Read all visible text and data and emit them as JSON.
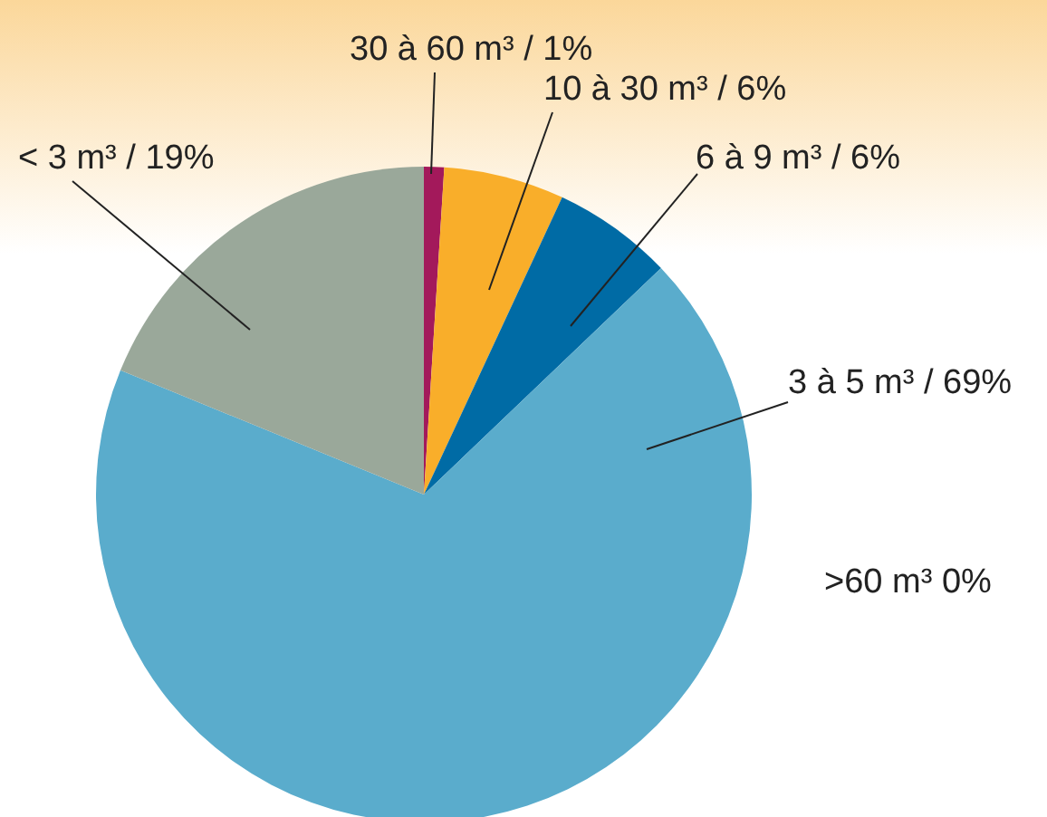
{
  "chart_data": {
    "type": "pie",
    "categories": [
      "30 à 60 m³ / 1%",
      "10 à 30 m³ / 6%",
      "6 à 9 m³ / 6%",
      "3 à 5 m³ / 69%",
      "< 3 m³ / 19%",
      ">60 m³ 0%"
    ],
    "values": [
      1,
      6,
      6,
      69,
      19,
      0
    ],
    "colors": [
      "#a3195b",
      "#f9ae2a",
      "#006ba5",
      "#5aaccc",
      "#9aa89a",
      "#e05a2b"
    ],
    "legend": false
  }
}
